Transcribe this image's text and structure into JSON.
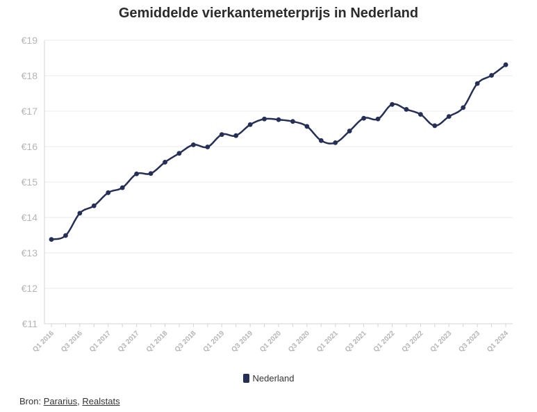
{
  "chart_data": {
    "type": "line",
    "title": "Gemiddelde vierkantemeterprijs in Nederland",
    "xlabel": "",
    "ylabel": "",
    "ylim": [
      11,
      19
    ],
    "yticks": [
      "€11",
      "€12",
      "€13",
      "€14",
      "€15",
      "€16",
      "€17",
      "€18",
      "€19"
    ],
    "y_tick_values": [
      11,
      12,
      13,
      14,
      15,
      16,
      17,
      18,
      19
    ],
    "grid": true,
    "legend_position": "bottom",
    "x": [
      "Q1 2016",
      "Q2 2016",
      "Q3 2016",
      "Q4 2016",
      "Q1 2017",
      "Q2 2017",
      "Q3 2017",
      "Q4 2017",
      "Q1 2018",
      "Q2 2018",
      "Q3 2018",
      "Q4 2018",
      "Q1 2019",
      "Q2 2019",
      "Q3 2019",
      "Q4 2019",
      "Q1 2020",
      "Q2 2020",
      "Q3 2020",
      "Q4 2020",
      "Q1 2021",
      "Q2 2021",
      "Q3 2021",
      "Q4 2021",
      "Q1 2022",
      "Q2 2022",
      "Q3 2022",
      "Q4 2022",
      "Q1 2023",
      "Q2 2023",
      "Q3 2023",
      "Q4 2023",
      "Q1 2024"
    ],
    "x_tick_labels": [
      "Q1 2016",
      "Q3 2016",
      "Q1 2017",
      "Q3 2017",
      "Q1 2018",
      "Q3 2018",
      "Q1 2019",
      "Q3 2019",
      "Q1 2020",
      "Q3 2020",
      "Q1 2021",
      "Q3 2021",
      "Q1 2022",
      "Q3 2022",
      "Q1 2023",
      "Q3 2023",
      "Q1 2024"
    ],
    "series": [
      {
        "name": "Nederland",
        "color": "#262f56",
        "values": [
          13.38,
          13.49,
          14.12,
          14.33,
          14.7,
          14.84,
          15.23,
          15.24,
          15.56,
          15.81,
          16.05,
          15.99,
          16.34,
          16.31,
          16.62,
          16.78,
          16.76,
          16.71,
          16.57,
          16.17,
          16.11,
          16.44,
          16.8,
          16.78,
          17.19,
          17.05,
          16.91,
          16.59,
          16.85,
          17.1,
          17.78,
          18.01,
          18.31
        ]
      }
    ]
  },
  "legend": {
    "label": "Nederland",
    "color": "#262f56"
  },
  "source": {
    "prefix": "Bron:",
    "link1": "Pararius",
    "separator": ",",
    "link2": "Realstats"
  },
  "colors": {
    "grid": "#e8e8e8",
    "axis": "#d4d4d4",
    "tick_label": "#b5b5b5"
  }
}
